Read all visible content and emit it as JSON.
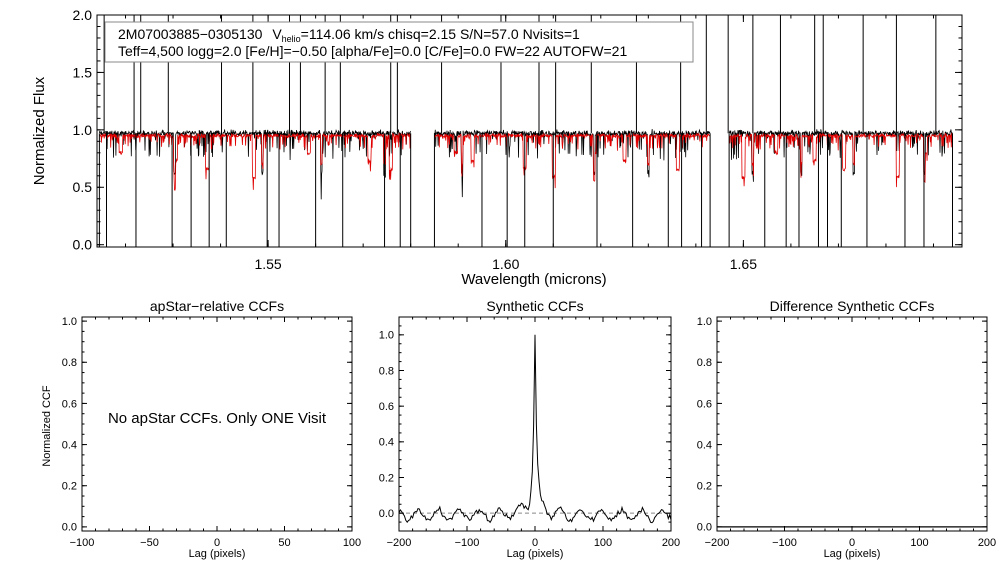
{
  "colors": {
    "observed": "#000000",
    "model": "#e00000",
    "zero_line": "#888888"
  },
  "chart_data": [
    {
      "type": "line",
      "id": "spectrum",
      "title": "",
      "xlabel": "Wavelength (microns)",
      "ylabel": "Normalized Flux",
      "xlim": [
        1.514,
        1.696
      ],
      "ylim": [
        -0.02,
        2.0
      ],
      "xticks": [
        {
          "v": 1.55,
          "label": "1.55"
        },
        {
          "v": 1.6,
          "label": "1.60"
        },
        {
          "v": 1.65,
          "label": "1.65"
        }
      ],
      "yticks": [
        {
          "v": 0.0,
          "label": "0.0"
        },
        {
          "v": 0.5,
          "label": "0.5"
        },
        {
          "v": 1.0,
          "label": "1.0"
        },
        {
          "v": 1.5,
          "label": "1.5"
        },
        {
          "v": 2.0,
          "label": "2.0"
        }
      ],
      "annotation": {
        "line1_star": "2M07003885−0305130",
        "line1_v": "V",
        "line1_vsub": "helio",
        "line1_rest": "=114.06 km/s  chisq=2.15  S/N=57.0  Nvisits=1",
        "line2": "Teff=4,500 logg=2.0 [Fe/H]=−0.50 [alpha/Fe]=0.0 [C/Fe]=0.0 FW=22 AUTOFW=21"
      },
      "segments": [
        [
          1.5145,
          1.58
        ],
        [
          1.585,
          1.643
        ],
        [
          1.647,
          1.694
        ]
      ],
      "continuum": 0.97,
      "series": [
        {
          "name": "observed spectrum",
          "color": "#000000"
        },
        {
          "name": "synthetic model",
          "color": "#e00000"
        }
      ],
      "emission_spikes": [
        1.5155,
        1.5218,
        1.5232,
        1.529,
        1.5402,
        1.5468,
        1.5545,
        1.5568,
        1.562,
        1.5652,
        1.5758,
        1.5772,
        1.5865,
        1.599,
        1.607,
        1.6105,
        1.618,
        1.6275,
        1.6368,
        1.6422,
        1.6468,
        1.652,
        1.6578,
        1.665,
        1.6668,
        1.6752,
        1.6822,
        1.6905
      ],
      "deep_absorptions": [
        1.516,
        1.5222,
        1.5298,
        1.5338,
        1.5376,
        1.5412,
        1.5498,
        1.5523,
        1.56,
        1.5657,
        1.5745,
        1.5778,
        1.595,
        1.6003,
        1.604,
        1.61,
        1.6192,
        1.6267,
        1.6342,
        1.637,
        1.6412,
        1.6545,
        1.659,
        1.6617,
        1.6658,
        1.6677,
        1.6706,
        1.676,
        1.684,
        1.688
      ],
      "mid_absorptions": [
        1.5303,
        1.5488,
        1.5612,
        1.5745,
        1.5908,
        1.6186,
        1.63,
        1.652,
        1.6622,
        1.6732,
        1.6881
      ],
      "model_lines": [
        1.519,
        1.5306,
        1.5372,
        1.547,
        1.5586,
        1.5713,
        1.5758,
        1.5818,
        1.5895,
        1.593,
        1.604,
        1.6101,
        1.6187,
        1.625,
        1.6362,
        1.65,
        1.6569,
        1.665,
        1.6712,
        1.6825,
        1.6883
      ]
    },
    {
      "type": "line",
      "id": "ccf-apstar",
      "title": "apStar−relative CCFs",
      "xlabel": "Lag (pixels)",
      "ylabel": "Normalized CCF",
      "xlim": [
        -100,
        100
      ],
      "ylim": [
        -0.02,
        1.02
      ],
      "xticks": [
        {
          "v": -100,
          "label": "−100"
        },
        {
          "v": -50,
          "label": "−50"
        },
        {
          "v": 0,
          "label": "0"
        },
        {
          "v": 50,
          "label": "50"
        },
        {
          "v": 100,
          "label": "100"
        }
      ],
      "yticks": [
        {
          "v": 0.0,
          "label": "0.0"
        },
        {
          "v": 0.2,
          "label": "0.2"
        },
        {
          "v": 0.4,
          "label": "0.4"
        },
        {
          "v": 0.6,
          "label": "0.6"
        },
        {
          "v": 0.8,
          "label": "0.8"
        },
        {
          "v": 1.0,
          "label": "1.0"
        }
      ],
      "message": "No apStar CCFs.  Only ONE Visit"
    },
    {
      "type": "line",
      "id": "ccf-synthetic",
      "title": "Synthetic CCFs",
      "xlabel": "Lag (pixels)",
      "ylabel": "",
      "xlim": [
        -200,
        200
      ],
      "ylim": [
        -0.1,
        1.1
      ],
      "xticks": [
        {
          "v": -200,
          "label": "−200"
        },
        {
          "v": -100,
          "label": "−100"
        },
        {
          "v": 0,
          "label": "0"
        },
        {
          "v": 100,
          "label": "100"
        },
        {
          "v": 200,
          "label": "200"
        }
      ],
      "yticks": [
        {
          "v": 0.0,
          "label": "0.0"
        },
        {
          "v": 0.2,
          "label": "0.2"
        },
        {
          "v": 0.4,
          "label": "0.4"
        },
        {
          "v": 0.6,
          "label": "0.6"
        },
        {
          "v": 0.8,
          "label": "0.8"
        },
        {
          "v": 1.0,
          "label": "1.0"
        }
      ],
      "zero_line": 0.0,
      "peak": {
        "lag": 0,
        "value": 1.0
      },
      "series": [
        {
          "name": "CCF",
          "color": "#000000"
        }
      ]
    },
    {
      "type": "line",
      "id": "ccf-difference",
      "title": "Difference Synthetic CCFs",
      "xlabel": "Lag (pixels)",
      "ylabel": "",
      "xlim": [
        -200,
        200
      ],
      "ylim": [
        -0.02,
        1.02
      ],
      "xticks": [
        {
          "v": -200,
          "label": "−200"
        },
        {
          "v": -100,
          "label": "−100"
        },
        {
          "v": 0,
          "label": "0"
        },
        {
          "v": 100,
          "label": "100"
        },
        {
          "v": 200,
          "label": "200"
        }
      ],
      "yticks": [
        {
          "v": 0.0,
          "label": "0.0"
        },
        {
          "v": 0.2,
          "label": "0.2"
        },
        {
          "v": 0.4,
          "label": "0.4"
        },
        {
          "v": 0.6,
          "label": "0.6"
        },
        {
          "v": 0.8,
          "label": "0.8"
        },
        {
          "v": 1.0,
          "label": "1.0"
        }
      ],
      "series": [
        {
          "name": "difference CCF",
          "color": "#000000",
          "constant": 0.0
        }
      ]
    }
  ]
}
